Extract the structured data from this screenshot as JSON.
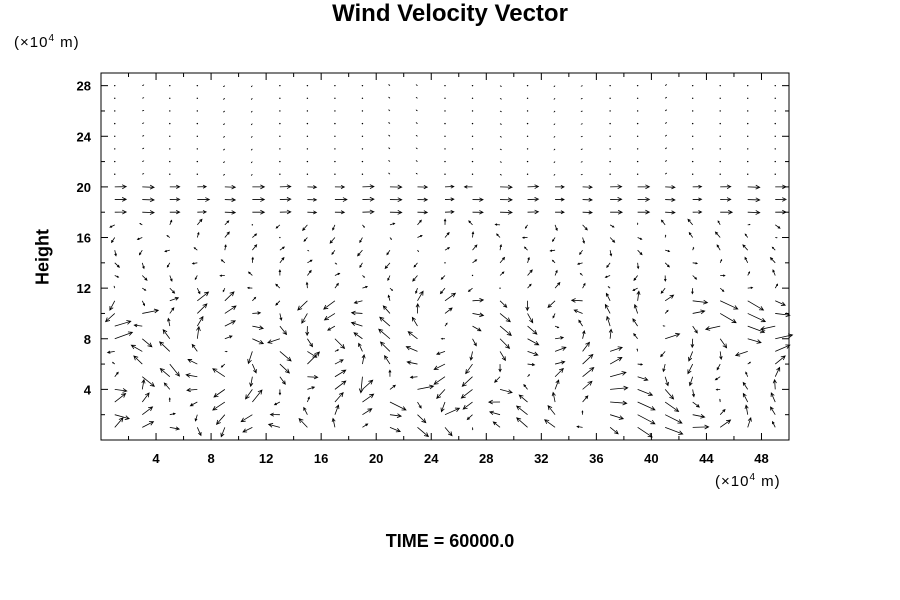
{
  "chart_data": {
    "type": "quiver",
    "title": "Wind Velocity Vector",
    "xlabel": "",
    "ylabel": "Height",
    "x_unit": {
      "prefix": "(×10",
      "exp": "4",
      "suffix": " m)"
    },
    "y_unit": {
      "prefix": "(×10",
      "exp": "4",
      "suffix": " m)"
    },
    "xlim": [
      0,
      50
    ],
    "ylim": [
      0,
      29
    ],
    "x_ticks": [
      4,
      8,
      12,
      16,
      20,
      24,
      28,
      32,
      36,
      40,
      44,
      48
    ],
    "y_ticks": [
      4,
      8,
      12,
      16,
      20,
      24,
      28
    ],
    "x_minor_step": 2,
    "y_minor_step": 2,
    "grid": false,
    "vector_grid": {
      "x_start": 1,
      "x_step": 2,
      "x_count": 25,
      "y_start": 1,
      "y_step": 1,
      "y_count": 28
    },
    "note": "",
    "vectors": [
      {
        "x": 1,
        "y": 9,
        "u": 2.0,
        "v": 0.6
      },
      {
        "x": 1,
        "y": 8,
        "u": 2.2,
        "v": 0.8
      },
      {
        "x": 1,
        "y": 4,
        "u": 1.5,
        "v": -0.2
      },
      {
        "x": 1,
        "y": 2,
        "u": 1.8,
        "v": -0.5
      },
      {
        "x": 3,
        "y": 10,
        "u": 2.0,
        "v": 0.4
      },
      {
        "x": 3,
        "y": 8,
        "u": 1.2,
        "v": -1.0
      },
      {
        "x": 3,
        "y": 5,
        "u": 1.5,
        "v": -1.2
      },
      {
        "x": 5,
        "y": 6,
        "u": 1.2,
        "v": -1.5
      },
      {
        "x": 7,
        "y": 8,
        "u": 0.2,
        "v": 1.5
      },
      {
        "x": 9,
        "y": 3,
        "u": -1.5,
        "v": -1.0
      },
      {
        "x": 9,
        "y": 5,
        "u": -1.5,
        "v": 1.0
      },
      {
        "x": 11,
        "y": 3,
        "u": 1.2,
        "v": 1.5
      },
      {
        "x": 11,
        "y": 7,
        "u": -0.5,
        "v": -1.5
      },
      {
        "x": 13,
        "y": 8,
        "u": -1.5,
        "v": -0.5
      },
      {
        "x": 15,
        "y": 6,
        "u": 1.5,
        "v": 1.5
      },
      {
        "x": 17,
        "y": 8,
        "u": 1.2,
        "v": -1.2
      },
      {
        "x": 19,
        "y": 5,
        "u": -0.2,
        "v": -2.0
      },
      {
        "x": 21,
        "y": 3,
        "u": 2.0,
        "v": -1.0
      },
      {
        "x": 23,
        "y": 4,
        "u": 2.0,
        "v": 0.4
      },
      {
        "x": 25,
        "y": 2,
        "u": 1.8,
        "v": 0.8
      },
      {
        "x": 29,
        "y": 4,
        "u": 1.5,
        "v": -0.4
      },
      {
        "x": 33,
        "y": 6,
        "u": 1.2,
        "v": 0.3
      },
      {
        "x": 37,
        "y": 7,
        "u": 1.5,
        "v": 0.5
      },
      {
        "x": 41,
        "y": 8,
        "u": 1.8,
        "v": 0.6
      },
      {
        "x": 43,
        "y": 10,
        "u": 1.5,
        "v": 0.3
      },
      {
        "x": 45,
        "y": 9,
        "u": -1.8,
        "v": -0.4
      },
      {
        "x": 47,
        "y": 7,
        "u": -1.5,
        "v": -0.5
      },
      {
        "x": 49,
        "y": 9,
        "u": -1.8,
        "v": -0.4
      },
      {
        "x": 7,
        "y": 19,
        "u": 1.5,
        "v": 0
      },
      {
        "x": 17,
        "y": 19,
        "u": 1.5,
        "v": 0
      },
      {
        "x": 27,
        "y": 20,
        "u": -1.0,
        "v": 0
      },
      {
        "x": 37,
        "y": 18,
        "u": 1.5,
        "v": 0
      },
      {
        "x": 45,
        "y": 18,
        "u": 1.5,
        "v": 0
      }
    ]
  },
  "footer": {
    "time_label": "TIME = 60000.0"
  }
}
